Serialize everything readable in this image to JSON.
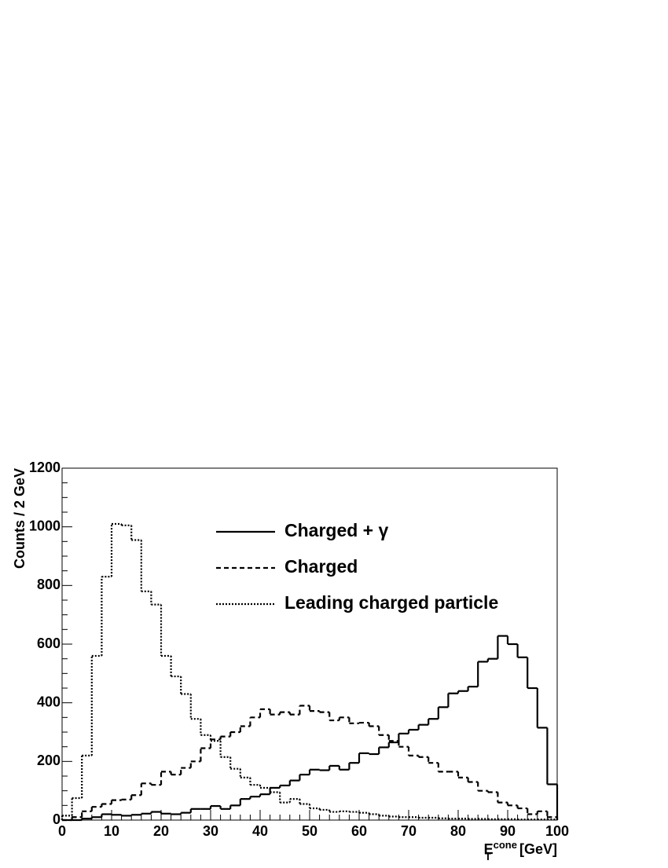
{
  "chart_data": {
    "type": "histogram",
    "y_label": "Counts / 2 GeV",
    "x_label": {
      "base": "E",
      "subscript": "T",
      "superscript": "cone",
      "unit": "[GeV]"
    },
    "bins": [
      0,
      2,
      4,
      6,
      8,
      10,
      12,
      14,
      16,
      18,
      20,
      22,
      24,
      26,
      28,
      30,
      32,
      34,
      36,
      38,
      40,
      42,
      44,
      46,
      48,
      50,
      52,
      54,
      56,
      58,
      60,
      62,
      64,
      66,
      68,
      70,
      72,
      74,
      76,
      78,
      80,
      82,
      84,
      86,
      88,
      90,
      92,
      94,
      96,
      98,
      100
    ],
    "series": [
      {
        "name": "Charged + γ",
        "color": "#000000",
        "line_style": "solid",
        "values": [
          0,
          0,
          5,
          10,
          20,
          18,
          15,
          18,
          22,
          28,
          22,
          20,
          25,
          38,
          38,
          48,
          38,
          50,
          72,
          80,
          88,
          110,
          118,
          135,
          155,
          172,
          170,
          185,
          172,
          195,
          228,
          225,
          248,
          265,
          295,
          308,
          325,
          345,
          385,
          432,
          440,
          455,
          540,
          550,
          628,
          600,
          555,
          450,
          315,
          122
        ]
      },
      {
        "name": "Charged",
        "color": "#000000",
        "line_style": "dashed",
        "values": [
          0,
          10,
          30,
          45,
          55,
          68,
          70,
          85,
          125,
          120,
          165,
          155,
          178,
          200,
          245,
          275,
          285,
          300,
          320,
          350,
          378,
          360,
          368,
          360,
          390,
          372,
          368,
          340,
          350,
          330,
          332,
          320,
          290,
          270,
          250,
          220,
          215,
          195,
          165,
          165,
          145,
          130,
          100,
          95,
          60,
          50,
          40,
          20,
          30,
          10
        ]
      },
      {
        "name": "Leading charged particle",
        "color": "#000000",
        "line_style": "dotted",
        "values": [
          15,
          75,
          220,
          560,
          830,
          1010,
          1005,
          955,
          780,
          735,
          560,
          490,
          430,
          345,
          290,
          270,
          215,
          175,
          145,
          120,
          110,
          95,
          60,
          72,
          55,
          40,
          35,
          28,
          30,
          28,
          25,
          20,
          15,
          12,
          10,
          10,
          8,
          8,
          6,
          5,
          5,
          4,
          4,
          3,
          3,
          3,
          2,
          2,
          2,
          2
        ]
      }
    ],
    "xlim": [
      0,
      100
    ],
    "xticks": [
      0,
      10,
      20,
      30,
      40,
      50,
      60,
      70,
      80,
      90,
      100
    ],
    "ylim": [
      0,
      1200
    ],
    "yticks": [
      0,
      200,
      400,
      600,
      800,
      1000,
      1200
    ],
    "x_minor_per_major": 5,
    "y_minor_per_major": 4,
    "legend": "top-right",
    "grid": false
  }
}
